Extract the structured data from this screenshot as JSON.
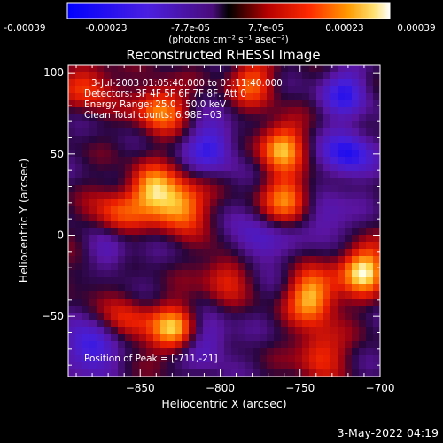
{
  "chart_data": {
    "type": "heatmap",
    "title": "Reconstructed RHESSI Image",
    "colorbar": {
      "ticks": [
        "-0.00039",
        "-0.00023",
        "-7.7e-05",
        "7.7e-05",
        "0.00023",
        "0.00039"
      ],
      "unit_line": "(photons cm⁻² s⁻¹ asec⁻²)",
      "range": [
        -0.00039,
        0.00039
      ],
      "colormap": "blue-purple-red-orange-yellow-white"
    },
    "xlabel": "Heliocentric X (arcsec)",
    "ylabel": "Heliocentric Y (arcsec)",
    "xlim": [
      -895,
      -700
    ],
    "ylim": [
      -87,
      105
    ],
    "xticks": [
      -850,
      -800,
      -750,
      -700
    ],
    "yticks": [
      -50,
      0,
      50,
      100
    ],
    "annotations": [
      "3-Jul-2003 01:05:40.000 to 01:11:40.000",
      "Detectors: 3F 4F 5F 6F 7F 8F, Att 0",
      "Energy Range: 25.0 - 50.0 keV",
      "Clean     Total counts: 6.98E+03"
    ],
    "peak_label": "Position of Peak = [-711,-21]",
    "peak": [
      -711,
      -21
    ],
    "bright_sources": [
      {
        "x": -882,
        "y": 92,
        "value": 0.00023
      },
      {
        "x": -838,
        "y": 78,
        "value": 0.0003
      },
      {
        "x": -780,
        "y": 95,
        "value": 0.00023
      },
      {
        "x": -843,
        "y": 28,
        "value": 0.0003
      },
      {
        "x": -825,
        "y": 18,
        "value": 0.00034
      },
      {
        "x": -762,
        "y": 55,
        "value": 0.00032
      },
      {
        "x": -757,
        "y": 22,
        "value": 0.0003
      },
      {
        "x": -866,
        "y": 12,
        "value": 0.00023
      },
      {
        "x": -742,
        "y": -38,
        "value": 0.00036
      },
      {
        "x": -711,
        "y": -21,
        "value": 0.00039
      },
      {
        "x": -827,
        "y": -58,
        "value": 0.00036
      },
      {
        "x": -858,
        "y": -54,
        "value": 0.0002
      },
      {
        "x": -797,
        "y": -24,
        "value": 0.0002
      },
      {
        "x": -738,
        "y": -72,
        "value": 0.00023
      },
      {
        "x": -880,
        "y": -20,
        "value": 0.00015
      }
    ],
    "dark_regions": [
      {
        "x": -805,
        "y": 55,
        "value": -0.00025
      },
      {
        "x": -720,
        "y": 50,
        "value": -0.0003
      },
      {
        "x": -722,
        "y": 88,
        "value": -0.00023
      },
      {
        "x": -880,
        "y": -70,
        "value": -0.0003
      },
      {
        "x": -872,
        "y": -12,
        "value": -0.00023
      },
      {
        "x": -810,
        "y": -65,
        "value": -0.00023
      },
      {
        "x": -777,
        "y": -5,
        "value": -0.0002
      },
      {
        "x": -735,
        "y": 10,
        "value": -0.00018
      }
    ]
  },
  "footer": {
    "timestamp": "3-May-2022 04:19"
  }
}
